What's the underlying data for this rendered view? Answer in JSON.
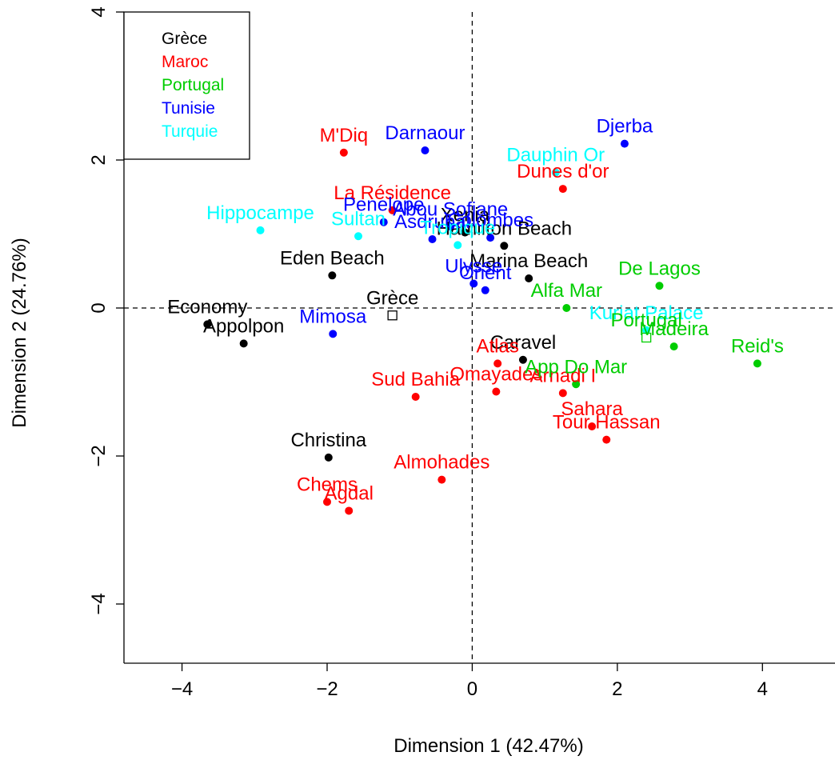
{
  "chart_data": {
    "type": "scatter",
    "title": "",
    "xlabel": "Dimension 1 (42.47%)",
    "ylabel": "Dimension 2 (24.76%)",
    "xlim": [
      -4.8,
      5.0
    ],
    "ylim": [
      -4.8,
      4.0
    ],
    "xticks": [
      -4,
      -2,
      0,
      2,
      4
    ],
    "yticks": [
      -4,
      -2,
      0,
      2,
      4
    ],
    "xtick_labels": [
      "−4",
      "−2",
      "0",
      "2",
      "4"
    ],
    "ytick_labels": [
      "−4",
      "−2",
      "0",
      "2",
      "4"
    ],
    "reference_lines": {
      "x": 0,
      "y": 0,
      "style": "dashed"
    },
    "legend": {
      "position": "top-left",
      "entries": [
        {
          "name": "Grèce",
          "color": "#000000"
        },
        {
          "name": "Maroc",
          "color": "#ff0000"
        },
        {
          "name": "Portugal",
          "color": "#00cd00"
        },
        {
          "name": "Tunisie",
          "color": "#0000ff"
        },
        {
          "name": "Turquie",
          "color": "#00ffff"
        }
      ]
    },
    "series": [
      {
        "name": "Grèce",
        "color": "#000000",
        "points": [
          {
            "label": "Economy",
            "x": -3.65,
            "y": -0.22
          },
          {
            "label": "Appolpon",
            "x": -3.15,
            "y": -0.48
          },
          {
            "label": "Eden Beach",
            "x": -1.93,
            "y": 0.44
          },
          {
            "label": "Christina",
            "x": -1.98,
            "y": -2.02
          },
          {
            "label": "Xenia",
            "x": -0.1,
            "y": 1.02
          },
          {
            "label": "Hamilton Beach",
            "x": 0.44,
            "y": 0.84
          },
          {
            "label": "Marina Beach",
            "x": 0.78,
            "y": 0.4
          },
          {
            "label": "Caravel",
            "x": 0.7,
            "y": -0.7
          }
        ]
      },
      {
        "name": "Maroc",
        "color": "#ff0000",
        "points": [
          {
            "label": "M'Diq",
            "x": -1.77,
            "y": 2.1
          },
          {
            "label": "La Résidence",
            "x": -1.1,
            "y": 1.32
          },
          {
            "label": "Dunes d'or",
            "x": 1.25,
            "y": 1.61
          },
          {
            "label": "Atlas",
            "x": 0.35,
            "y": -0.75
          },
          {
            "label": "Omayades",
            "x": 0.33,
            "y": -1.13
          },
          {
            "label": "Sud Bahia",
            "x": -0.78,
            "y": -1.2
          },
          {
            "label": "Arnadi I",
            "x": 1.25,
            "y": -1.15
          },
          {
            "label": "Sahara",
            "x": 1.65,
            "y": -1.6
          },
          {
            "label": "Tour Hassan",
            "x": 1.85,
            "y": -1.78
          },
          {
            "label": "Almohades",
            "x": -0.42,
            "y": -2.32
          },
          {
            "label": "Chems",
            "x": -2.0,
            "y": -2.62
          },
          {
            "label": "Agdal",
            "x": -1.7,
            "y": -2.74
          }
        ]
      },
      {
        "name": "Portugal",
        "color": "#00cd00",
        "points": [
          {
            "label": "De Lagos",
            "x": 2.58,
            "y": 0.3
          },
          {
            "label": "Alfa Mar",
            "x": 1.3,
            "y": 0.0
          },
          {
            "label": "Madeira",
            "x": 2.78,
            "y": -0.52
          },
          {
            "label": "Reid's",
            "x": 3.93,
            "y": -0.75
          },
          {
            "label": "App Do Mar",
            "x": 1.43,
            "y": -1.03
          }
        ]
      },
      {
        "name": "Tunisie",
        "color": "#0000ff",
        "points": [
          {
            "label": "Darnaour",
            "x": -0.65,
            "y": 2.13
          },
          {
            "label": "Djerba",
            "x": 2.1,
            "y": 2.22
          },
          {
            "label": "Abou Sofiane",
            "x": -0.3,
            "y": 1.1
          },
          {
            "label": "Penelope",
            "x": -1.22,
            "y": 1.16
          },
          {
            "label": "Colombes",
            "x": 0.25,
            "y": 0.95
          },
          {
            "label": "Asdrubal",
            "x": -0.55,
            "y": 0.93
          },
          {
            "label": "Ulysse",
            "x": 0.02,
            "y": 0.33
          },
          {
            "label": "Mimosa",
            "x": -1.92,
            "y": -0.35
          },
          {
            "label": "Orient",
            "x": 0.18,
            "y": 0.24
          }
        ]
      },
      {
        "name": "Turquie",
        "color": "#00ffff",
        "points": [
          {
            "label": "Dauphin Or",
            "x": 1.15,
            "y": 1.83
          },
          {
            "label": "Hippocampe",
            "x": -2.92,
            "y": 1.05
          },
          {
            "label": "Sultan",
            "x": -1.57,
            "y": 0.97
          },
          {
            "label": "Tropique",
            "x": -0.2,
            "y": 0.85
          },
          {
            "label": "Kuriat Palace",
            "x": 2.4,
            "y": -0.3
          }
        ]
      },
      {
        "name": "",
        "color": "#000000",
        "marker": "square",
        "points": [
          {
            "label": "Grèce",
            "x": -1.1,
            "y": -0.1,
            "color": "#000000"
          },
          {
            "label": "Portugal",
            "x": 2.4,
            "y": -0.4,
            "color": "#00cd00"
          }
        ]
      }
    ],
    "overlapping_labels_shown": [
      "Turquie",
      "Tunisie",
      "Maroc"
    ]
  }
}
